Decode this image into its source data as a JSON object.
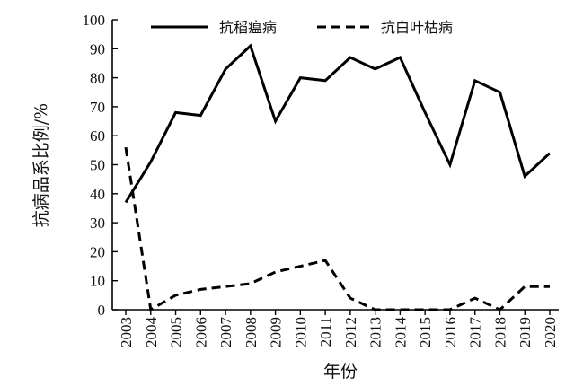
{
  "chart_data": {
    "type": "line",
    "title": "",
    "xlabel": "年份",
    "ylabel": "抗病品系比例/%",
    "categories": [
      "2003",
      "2004",
      "2005",
      "2006",
      "2007",
      "2008",
      "2009",
      "2010",
      "2011",
      "2012",
      "2013",
      "2014",
      "2015",
      "2016",
      "2017",
      "2018",
      "2019",
      "2020"
    ],
    "ylim": [
      0,
      100
    ],
    "yticks": [
      0,
      10,
      20,
      30,
      40,
      50,
      60,
      70,
      80,
      90,
      100
    ],
    "grid": false,
    "legend_position": "top",
    "series": [
      {
        "name": "抗稻瘟病",
        "line_style": "solid",
        "color": "#000000",
        "values": [
          37,
          51,
          68,
          67,
          83,
          91,
          65,
          80,
          79,
          87,
          83,
          87,
          68,
          50,
          79,
          75,
          46,
          54
        ]
      },
      {
        "name": "抗白叶枯病",
        "line_style": "dashed",
        "color": "#000000",
        "values": [
          56,
          0,
          5,
          7,
          8,
          9,
          13,
          15,
          17,
          4,
          0,
          0,
          0,
          0,
          4,
          0,
          8,
          8
        ]
      }
    ]
  }
}
